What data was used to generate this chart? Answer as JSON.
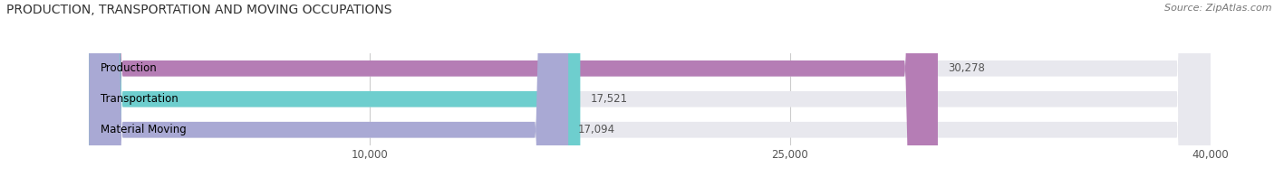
{
  "title": "PRODUCTION, TRANSPORTATION AND MOVING OCCUPATIONS",
  "source": "Source: ZipAtlas.com",
  "categories": [
    "Production",
    "Transportation",
    "Material Moving"
  ],
  "values": [
    30278,
    17521,
    17094
  ],
  "bar_colors": [
    "#b57db5",
    "#6ecece",
    "#a9a9d4"
  ],
  "bar_bg_color": "#e8e8ee",
  "xlim": [
    0,
    40000
  ],
  "xticks": [
    10000,
    25000,
    40000
  ],
  "xtick_labels": [
    "10,000",
    "25,000",
    "40,000"
  ],
  "title_fontsize": 10,
  "label_fontsize": 8.5,
  "value_fontsize": 8.5,
  "source_fontsize": 8,
  "background_color": "#ffffff",
  "bar_height": 0.52
}
